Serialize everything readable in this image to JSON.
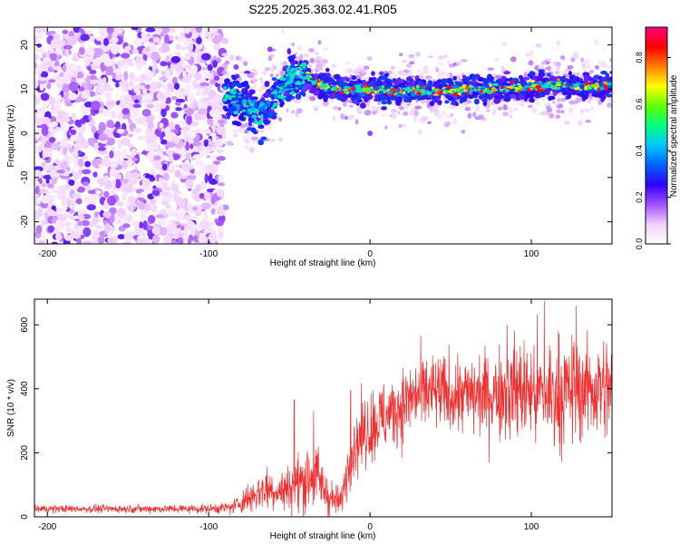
{
  "title": "S225.2025.363.02.41.R05",
  "chart_data": [
    {
      "type": "heatmap",
      "xlabel": "Height of straight line (km)",
      "ylabel": "Frequency (Hz)",
      "xlim": [
        -208,
        150
      ],
      "ylim": [
        -25,
        24
      ],
      "xticks": [
        -200,
        -100,
        0,
        100
      ],
      "yticks": [
        -20,
        -10,
        0,
        10,
        20
      ],
      "colorbar": {
        "label": "Normalized spectral amplitude",
        "range": [
          0,
          0.93
        ],
        "ticks": [
          "0.0",
          "0.2",
          "0.4",
          "0.6",
          "0.8"
        ],
        "tick_values": [
          0.0,
          0.2,
          0.4,
          0.6,
          0.8
        ],
        "colors": [
          "#ffffff",
          "#f0d0ff",
          "#a050ff",
          "#3000ff",
          "#0060ff",
          "#00c8ff",
          "#00ff80",
          "#60ff00",
          "#ffff00",
          "#ff8000",
          "#ff0000",
          "#ff0080"
        ]
      },
      "regions": {
        "noise_x": [
          -208,
          -90
        ],
        "signal_ridge_x": [
          -90,
          150
        ],
        "signal_ridge_frequency_hz": [
          [
            -95,
            10
          ],
          [
            -85,
            8
          ],
          [
            -75,
            6
          ],
          [
            -68,
            4
          ],
          [
            -60,
            8
          ],
          [
            -50,
            12
          ],
          [
            -40,
            13
          ],
          [
            -30,
            11
          ],
          [
            -20,
            10
          ],
          [
            -10,
            10
          ],
          [
            0,
            10
          ],
          [
            20,
            9.5
          ],
          [
            40,
            9.5
          ],
          [
            60,
            10
          ],
          [
            80,
            10
          ],
          [
            100,
            10.5
          ],
          [
            120,
            11
          ],
          [
            140,
            10.5
          ],
          [
            150,
            11
          ]
        ],
        "outlier_points": [
          [
            -95,
            12.5
          ],
          [
            -62,
            19
          ],
          [
            0,
            0
          ],
          [
            -83,
            15
          ]
        ]
      }
    },
    {
      "type": "line",
      "xlabel": "Height of straight line (km)",
      "ylabel": "SNR (10 * v/v)",
      "xlim": [
        -208,
        150
      ],
      "ylim": [
        0,
        680
      ],
      "xticks": [
        -200,
        -100,
        0,
        100
      ],
      "yticks": [
        0,
        200,
        400,
        600
      ],
      "color": "#f03030",
      "envelope": {
        "x": [
          -208,
          -150,
          -100,
          -85,
          -75,
          -65,
          -55,
          -45,
          -35,
          -25,
          -18,
          -12,
          -5,
          5,
          15,
          25,
          35,
          50,
          70,
          90,
          110,
          130,
          150
        ],
        "mean": [
          25,
          25,
          25,
          30,
          60,
          90,
          80,
          100,
          140,
          60,
          45,
          200,
          260,
          300,
          330,
          370,
          390,
          380,
          380,
          400,
          380,
          400,
          400
        ],
        "spread": [
          6,
          6,
          7,
          10,
          25,
          35,
          30,
          45,
          60,
          30,
          20,
          50,
          55,
          60,
          55,
          60,
          60,
          60,
          65,
          80,
          90,
          80,
          80
        ]
      },
      "peaks": [
        [
          -47,
          365
        ],
        [
          -35,
          330
        ],
        [
          -12,
          395
        ],
        [
          108,
          675
        ],
        [
          128,
          660
        ],
        [
          85,
          600
        ]
      ]
    }
  ]
}
